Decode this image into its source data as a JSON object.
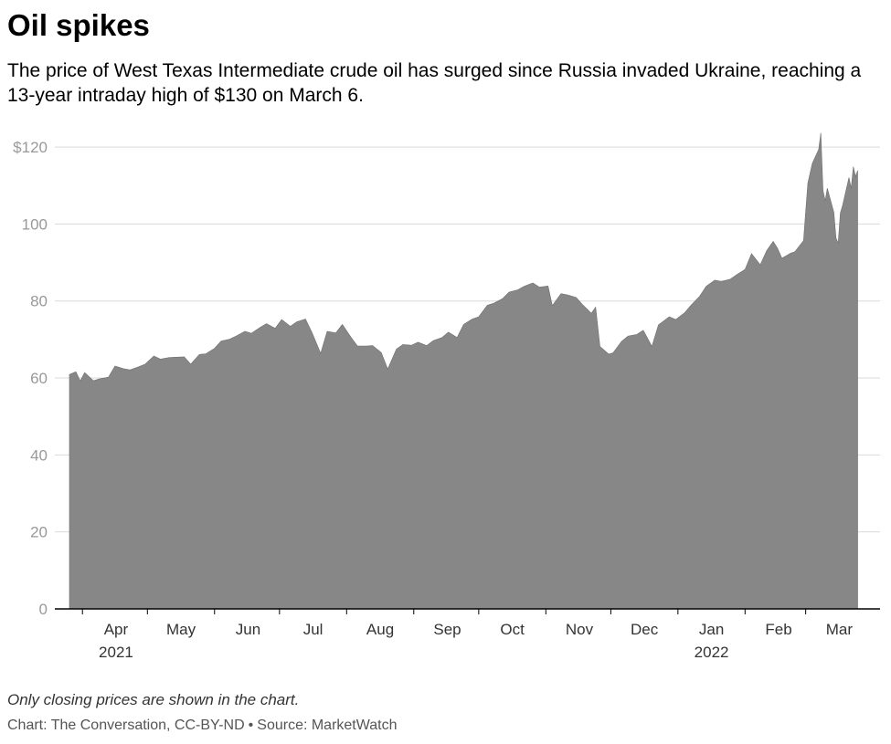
{
  "header": {
    "title": "Oil spikes",
    "subtitle": "The price of West Texas Intermediate crude oil has surged since Russia invaded Ukraine, reaching a 13-year intraday high of $130 on March 6."
  },
  "footer": {
    "note": "Only closing prices are shown in the chart.",
    "credit_chart": "Chart: The Conversation, CC-BY-ND",
    "credit_separator": "•",
    "credit_source": "Source: MarketWatch"
  },
  "colors": {
    "area": "#878787",
    "gridline": "#d9d9d9",
    "axis": "#000000",
    "tick_text": "#999999",
    "month_text": "#333333"
  },
  "chart_data": {
    "type": "area",
    "title": "Oil spikes",
    "xlabel": "",
    "ylabel": "",
    "ylim": [
      0,
      125
    ],
    "xlim": [
      "2021-03-26",
      "2022-03-29"
    ],
    "grid": true,
    "legend": "none",
    "y_ticks": [
      {
        "value": 0,
        "label": "0"
      },
      {
        "value": 20,
        "label": "20"
      },
      {
        "value": 40,
        "label": "40"
      },
      {
        "value": 60,
        "label": "60"
      },
      {
        "value": 80,
        "label": "80"
      },
      {
        "value": 100,
        "label": "100"
      },
      {
        "value": 120,
        "label": "$120"
      }
    ],
    "x_ticks": [
      {
        "date": "2021-04-01",
        "label": "Apr",
        "year": "2021"
      },
      {
        "date": "2021-05-01",
        "label": "May",
        "year": ""
      },
      {
        "date": "2021-06-01",
        "label": "Jun",
        "year": ""
      },
      {
        "date": "2021-07-01",
        "label": "Jul",
        "year": ""
      },
      {
        "date": "2021-08-01",
        "label": "Aug",
        "year": ""
      },
      {
        "date": "2021-09-01",
        "label": "Sep",
        "year": ""
      },
      {
        "date": "2021-10-01",
        "label": "Oct",
        "year": ""
      },
      {
        "date": "2021-11-01",
        "label": "Nov",
        "year": ""
      },
      {
        "date": "2021-12-01",
        "label": "Dec",
        "year": ""
      },
      {
        "date": "2022-01-01",
        "label": "Jan",
        "year": "2022"
      },
      {
        "date": "2022-02-01",
        "label": "Feb",
        "year": ""
      },
      {
        "date": "2022-03-01",
        "label": "Mar",
        "year": ""
      }
    ],
    "series": [
      {
        "points": [
          [
            "2021-03-26",
            60.9
          ],
          [
            "2021-03-29",
            61.6
          ],
          [
            "2021-03-31",
            59.2
          ],
          [
            "2021-04-02",
            61.4
          ],
          [
            "2021-04-06",
            59.3
          ],
          [
            "2021-04-09",
            59.8
          ],
          [
            "2021-04-13",
            60.2
          ],
          [
            "2021-04-16",
            63.1
          ],
          [
            "2021-04-20",
            62.4
          ],
          [
            "2021-04-23",
            62.1
          ],
          [
            "2021-04-27",
            62.9
          ],
          [
            "2021-04-30",
            63.6
          ],
          [
            "2021-05-04",
            65.7
          ],
          [
            "2021-05-07",
            64.9
          ],
          [
            "2021-05-11",
            65.3
          ],
          [
            "2021-05-14",
            65.4
          ],
          [
            "2021-05-18",
            65.5
          ],
          [
            "2021-05-21",
            63.6
          ],
          [
            "2021-05-25",
            66.1
          ],
          [
            "2021-05-28",
            66.3
          ],
          [
            "2021-06-01",
            67.7
          ],
          [
            "2021-06-04",
            69.6
          ],
          [
            "2021-06-08",
            70.1
          ],
          [
            "2021-06-11",
            70.9
          ],
          [
            "2021-06-15",
            72.1
          ],
          [
            "2021-06-18",
            71.6
          ],
          [
            "2021-06-22",
            73.1
          ],
          [
            "2021-06-25",
            74.1
          ],
          [
            "2021-06-29",
            72.9
          ],
          [
            "2021-07-02",
            75.2
          ],
          [
            "2021-07-06",
            73.4
          ],
          [
            "2021-07-09",
            74.6
          ],
          [
            "2021-07-13",
            75.3
          ],
          [
            "2021-07-16",
            71.8
          ],
          [
            "2021-07-20",
            66.4
          ],
          [
            "2021-07-23",
            72.1
          ],
          [
            "2021-07-27",
            71.7
          ],
          [
            "2021-07-30",
            73.9
          ],
          [
            "2021-08-03",
            70.6
          ],
          [
            "2021-08-06",
            68.3
          ],
          [
            "2021-08-10",
            68.3
          ],
          [
            "2021-08-13",
            68.4
          ],
          [
            "2021-08-17",
            66.6
          ],
          [
            "2021-08-20",
            62.3
          ],
          [
            "2021-08-24",
            67.5
          ],
          [
            "2021-08-27",
            68.7
          ],
          [
            "2021-08-31",
            68.5
          ],
          [
            "2021-09-03",
            69.3
          ],
          [
            "2021-09-07",
            68.4
          ],
          [
            "2021-09-10",
            69.7
          ],
          [
            "2021-09-14",
            70.5
          ],
          [
            "2021-09-17",
            71.9
          ],
          [
            "2021-09-21",
            70.5
          ],
          [
            "2021-09-24",
            73.9
          ],
          [
            "2021-09-28",
            75.3
          ],
          [
            "2021-10-01",
            75.9
          ],
          [
            "2021-10-05",
            78.9
          ],
          [
            "2021-10-08",
            79.4
          ],
          [
            "2021-10-12",
            80.6
          ],
          [
            "2021-10-15",
            82.3
          ],
          [
            "2021-10-19",
            82.9
          ],
          [
            "2021-10-22",
            83.8
          ],
          [
            "2021-10-26",
            84.7
          ],
          [
            "2021-10-29",
            83.6
          ],
          [
            "2021-11-02",
            83.9
          ],
          [
            "2021-11-04",
            78.8
          ],
          [
            "2021-11-08",
            81.9
          ],
          [
            "2021-11-11",
            81.6
          ],
          [
            "2021-11-15",
            80.9
          ],
          [
            "2021-11-18",
            79.0
          ],
          [
            "2021-11-22",
            76.8
          ],
          [
            "2021-11-24",
            78.4
          ],
          [
            "2021-11-26",
            68.2
          ],
          [
            "2021-11-30",
            66.2
          ],
          [
            "2021-12-02",
            66.5
          ],
          [
            "2021-12-06",
            69.5
          ],
          [
            "2021-12-09",
            70.9
          ],
          [
            "2021-12-13",
            71.3
          ],
          [
            "2021-12-16",
            72.4
          ],
          [
            "2021-12-20",
            68.2
          ],
          [
            "2021-12-23",
            73.8
          ],
          [
            "2021-12-28",
            75.9
          ],
          [
            "2021-12-31",
            75.2
          ],
          [
            "2022-01-04",
            76.9
          ],
          [
            "2022-01-07",
            78.9
          ],
          [
            "2022-01-11",
            81.2
          ],
          [
            "2022-01-14",
            83.8
          ],
          [
            "2022-01-18",
            85.4
          ],
          [
            "2022-01-21",
            85.1
          ],
          [
            "2022-01-25",
            85.6
          ],
          [
            "2022-01-28",
            86.8
          ],
          [
            "2022-02-01",
            88.2
          ],
          [
            "2022-02-04",
            92.3
          ],
          [
            "2022-02-08",
            89.4
          ],
          [
            "2022-02-11",
            93.1
          ],
          [
            "2022-02-14",
            95.5
          ],
          [
            "2022-02-16",
            93.7
          ],
          [
            "2022-02-18",
            91.1
          ],
          [
            "2022-02-22",
            92.4
          ],
          [
            "2022-02-24",
            92.8
          ],
          [
            "2022-02-28",
            95.7
          ],
          [
            "2022-03-01",
            103.4
          ],
          [
            "2022-03-02",
            110.6
          ],
          [
            "2022-03-04",
            115.7
          ],
          [
            "2022-03-07",
            119.4
          ],
          [
            "2022-03-08",
            123.7
          ],
          [
            "2022-03-09",
            108.7
          ],
          [
            "2022-03-10",
            106.0
          ],
          [
            "2022-03-11",
            109.3
          ],
          [
            "2022-03-14",
            103.0
          ],
          [
            "2022-03-15",
            96.4
          ],
          [
            "2022-03-16",
            95.0
          ],
          [
            "2022-03-17",
            102.9
          ],
          [
            "2022-03-18",
            104.7
          ],
          [
            "2022-03-21",
            112.1
          ],
          [
            "2022-03-22",
            109.3
          ],
          [
            "2022-03-23",
            114.9
          ],
          [
            "2022-03-24",
            112.3
          ],
          [
            "2022-03-25",
            113.9
          ]
        ]
      }
    ]
  }
}
